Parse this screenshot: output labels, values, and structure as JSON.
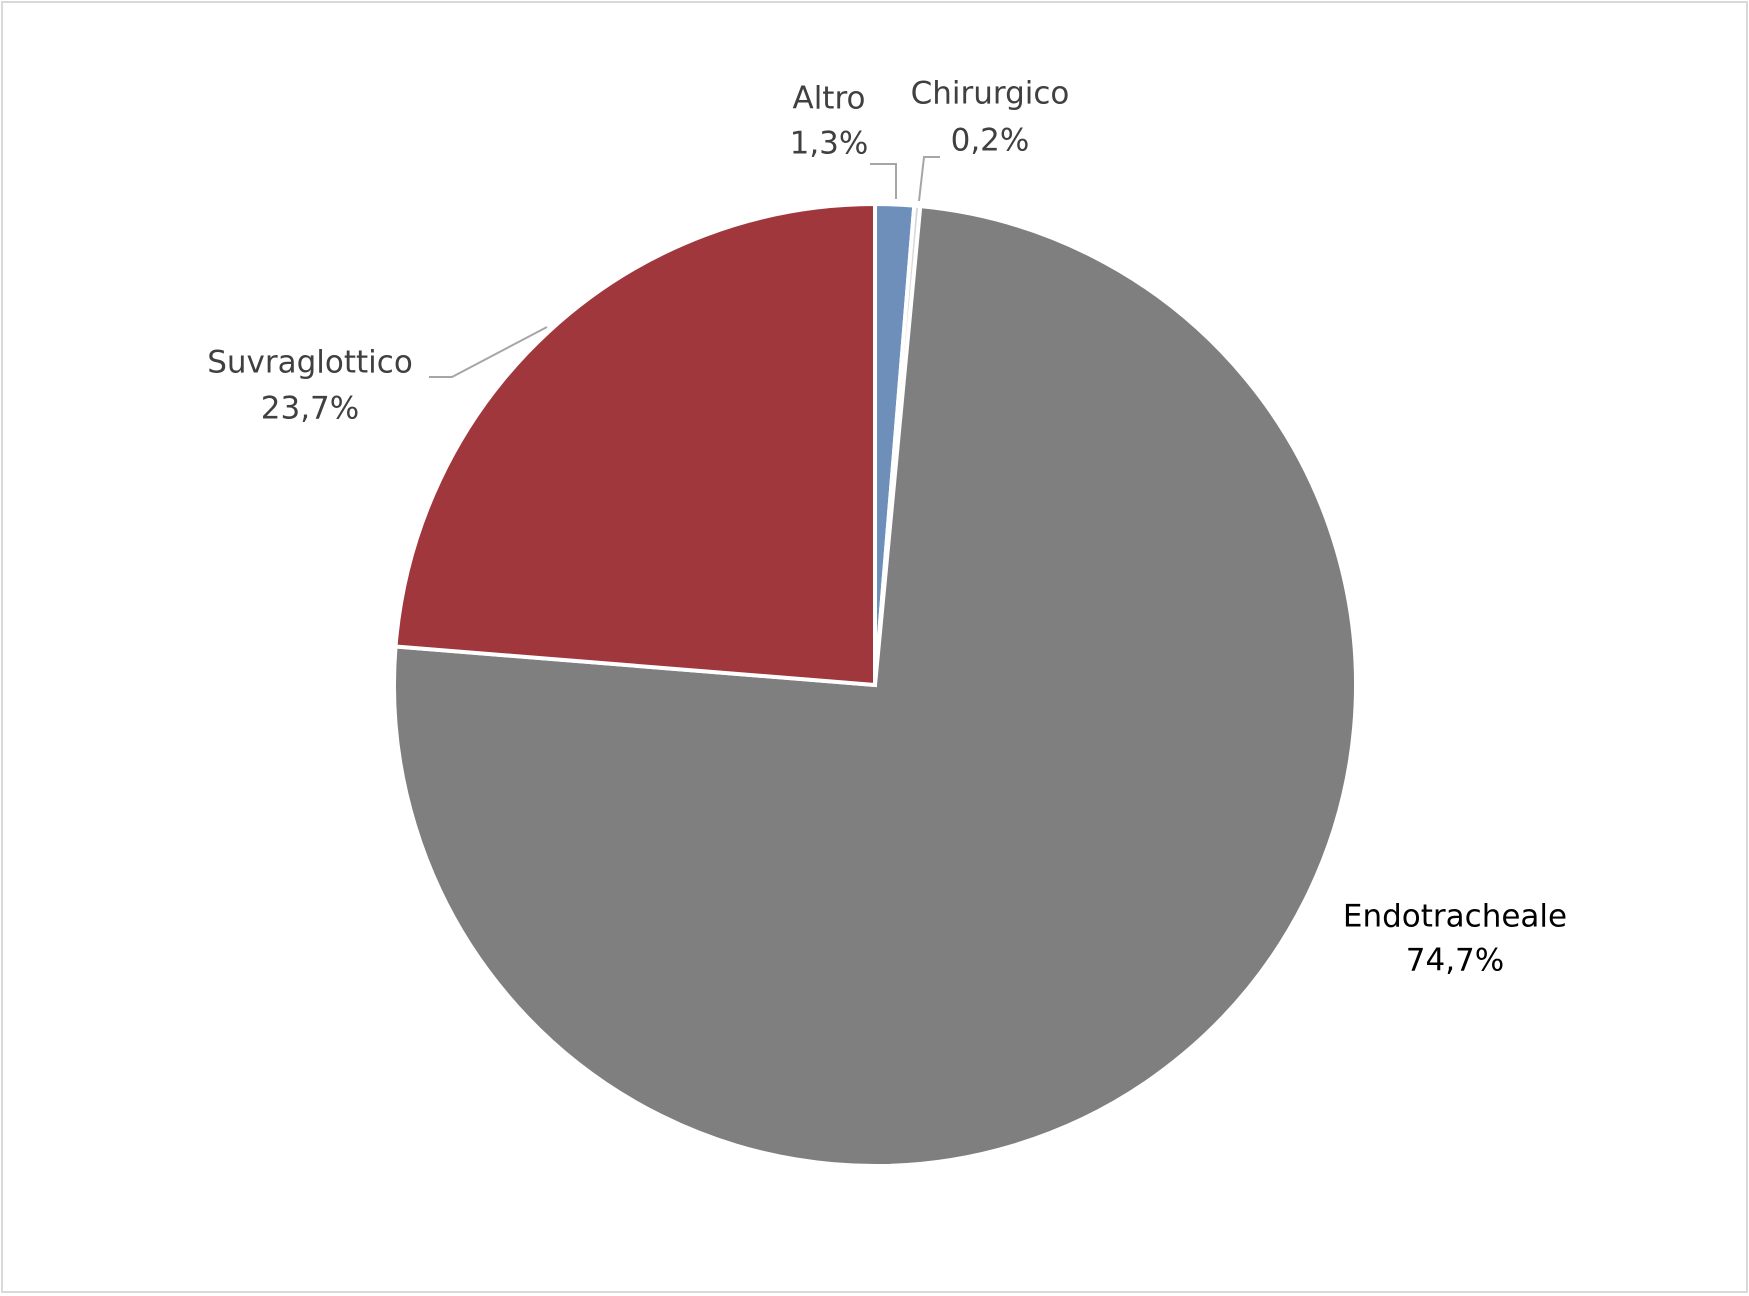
{
  "chart_data": {
    "type": "pie",
    "categories": [
      "Altro",
      "Chirurgico",
      "Endotracheale",
      "Suvraglottico"
    ],
    "values": [
      1.3,
      0.2,
      74.7,
      23.7
    ],
    "value_labels": [
      "1,3%",
      "0,2%",
      "74,7%",
      "23,7%"
    ],
    "colors": [
      "#6d8fba",
      "#d9d9d9",
      "#7f7f7f",
      "#a0373d"
    ]
  }
}
